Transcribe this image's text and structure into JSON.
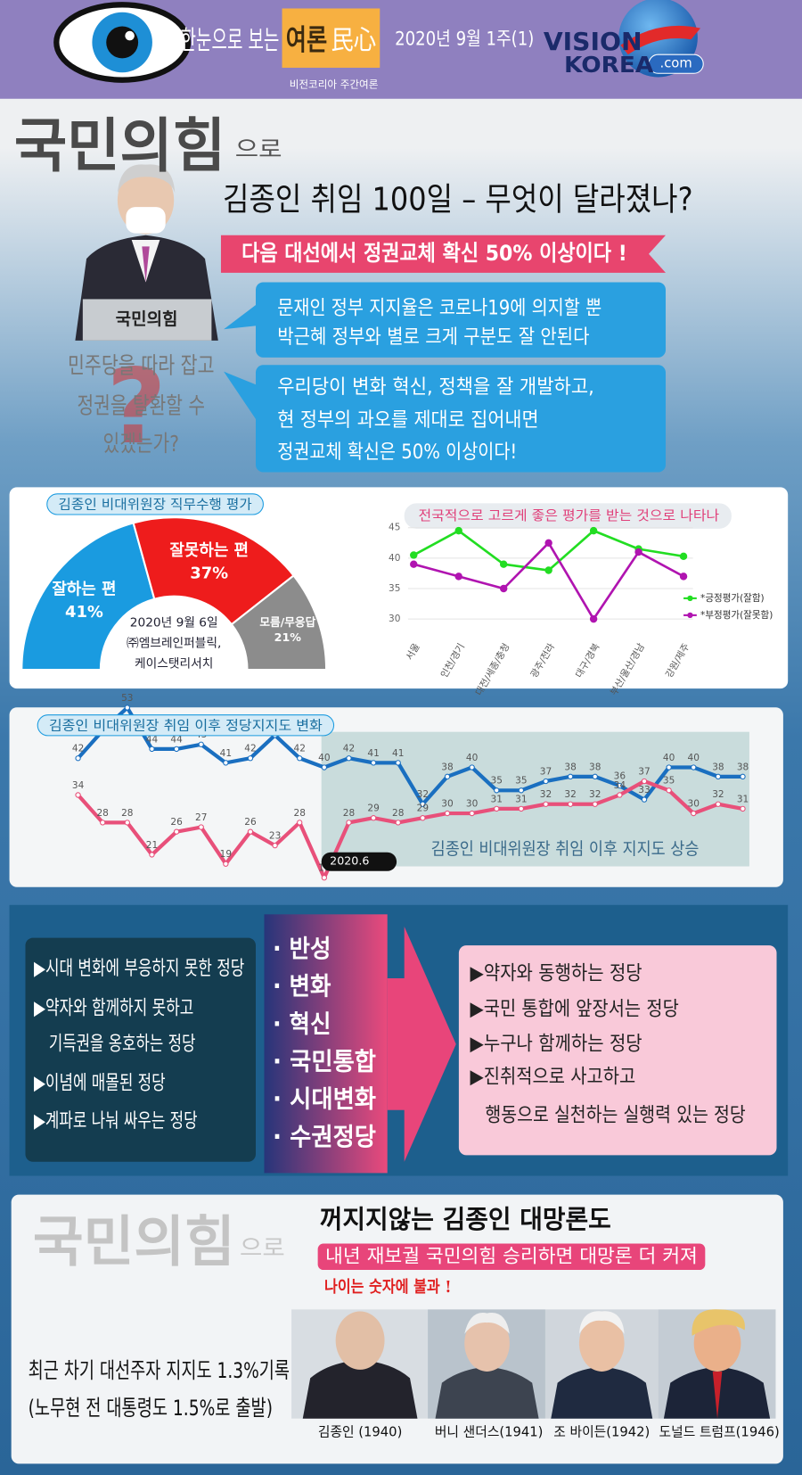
{
  "header": {
    "title_a": "한눈으로 보는",
    "title_b": "여론",
    "title_c": "民心",
    "subtitle": "비전코리아 주간여론",
    "date": "2020년 9월 1주(1)",
    "logo_a": "VISION",
    "logo_b": "KOREA",
    "logo_c": ".com"
  },
  "intro": {
    "calligraphy": "국민의힘",
    "calligraphy_suffix": "으로",
    "headline": "김종인 취임 100일 – 무엇이 달라졌나?",
    "banner": "다음 대선에서 정권교체 확신 50% 이상이다 !",
    "podium": "국민의힘",
    "question_lines": [
      "민주당을 따라 잡고",
      "정권을 탈환할 수",
      "있겠는가?"
    ],
    "question_mark": "?",
    "box1": [
      "문재인 정부 지지율은 코로나19에 의지할 뿐",
      "박근혜 정부와 별로 크게 구분도 잘 안된다"
    ],
    "box2": [
      "우리당이  변화 혁신, 정책을 잘 개발하고,",
      "현 정부의 과오를 제대로 집어내면",
      "정권교체 확신은 50% 이상이다!"
    ]
  },
  "chart_data": [
    {
      "type": "pie",
      "title": "김종인 비대위원장 직무수행 평가",
      "categories": [
        "잘하는 편",
        "잘못하는 편",
        "모름/무응답"
      ],
      "values": [
        41,
        37,
        21
      ],
      "value_labels": [
        "41%",
        "37%",
        "21%"
      ],
      "colors": [
        "#1a9be0",
        "#ee1c1c",
        "#8c8c8c"
      ],
      "notes": [
        "2020년 9월 6일",
        "㈜엠브레인퍼블릭,",
        "케이스탯리서치"
      ]
    },
    {
      "type": "line",
      "title": "전국적으로 고르게 좋은 평가를 받는 것으로 나타나",
      "categories": [
        "서울",
        "인천/경기",
        "대전/세종/충청",
        "광주/전라",
        "대구/경북",
        "부산/울산/경남",
        "강원/제주"
      ],
      "series": [
        {
          "name": "*긍정평가(잘함)",
          "color": "#22dd22",
          "values": [
            40.5,
            44.5,
            39,
            38,
            44.5,
            41.5,
            40.3
          ]
        },
        {
          "name": "*부정평가(잘못함)",
          "color": "#b014b0",
          "values": [
            39,
            37,
            35,
            42.5,
            30,
            41,
            37
          ]
        }
      ],
      "ylim": [
        28,
        46
      ],
      "yticks": [
        30,
        35,
        40,
        45
      ],
      "grid": true,
      "legend": "right"
    },
    {
      "type": "line",
      "title": "김종인 비대위원장 취임 이후 정당지지도 변화",
      "categories": [
        null,
        null,
        null,
        null,
        null,
        null,
        null,
        null,
        null,
        null,
        "2020.6",
        null,
        null,
        null,
        null,
        null,
        null,
        null,
        null,
        null,
        null,
        null,
        null,
        null,
        null,
        null,
        null,
        null
      ],
      "series": [
        {
          "color": "#1a6fc0",
          "values": [
            42,
            48,
            53,
            44,
            44,
            45,
            41,
            42,
            47,
            42,
            40,
            42,
            41,
            41,
            32,
            38,
            40,
            35,
            35,
            37,
            38,
            38,
            36,
            33,
            40,
            40,
            38,
            38
          ]
        },
        {
          "color": "#e8507a",
          "values": [
            34,
            28,
            28,
            21,
            26,
            27,
            19,
            26,
            23,
            28,
            16,
            28,
            29,
            28,
            29,
            30,
            30,
            31,
            31,
            32,
            32,
            32,
            34,
            37,
            35,
            30,
            32,
            31
          ]
        }
      ],
      "ylim": [
        14,
        54
      ],
      "data_labels": true,
      "annotation": "김종인 비대위원장 취임 이후 지지도 상승"
    }
  ],
  "compare": {
    "left": [
      "▶시대 변화에 부응하지 못한 정당",
      "▶약자와 함께하지 못하고",
      "기득권을 옹호하는 정당",
      "▶이념에 매몰된 정당",
      "▶계파로 나눠 싸우는 정당"
    ],
    "middle": [
      "· 반성",
      "· 변화",
      "· 혁신",
      "· 국민통합",
      "· 시대변화",
      "· 수권정당"
    ],
    "right": [
      "▶약자와 동행하는 정당",
      "▶국민 통합에 앞장서는 정당",
      "▶누구나 함께하는 정당",
      "▶진취적으로 사고하고",
      "행동으로 실천하는 실행력 있는 정당"
    ]
  },
  "outlook": {
    "calligraphy": "국민의힘",
    "calligraphy_suffix": "으로",
    "title": "꺼지지않는 김종인 대망론도",
    "banner": "내년 재보궐 국민의힘 승리하면 대망론 더 커져",
    "quote": "나이는 숫자에 불과 !",
    "record": [
      "최근 차기 대선주자 지지도 1.3%기록",
      "(노무현 전 대통령도 1.5%로 출발)"
    ],
    "people": [
      "김종인 (1940)",
      "버니 샌더스(1941)",
      "조 바이든(1942)",
      "도널드 트럼프(1946)"
    ]
  }
}
